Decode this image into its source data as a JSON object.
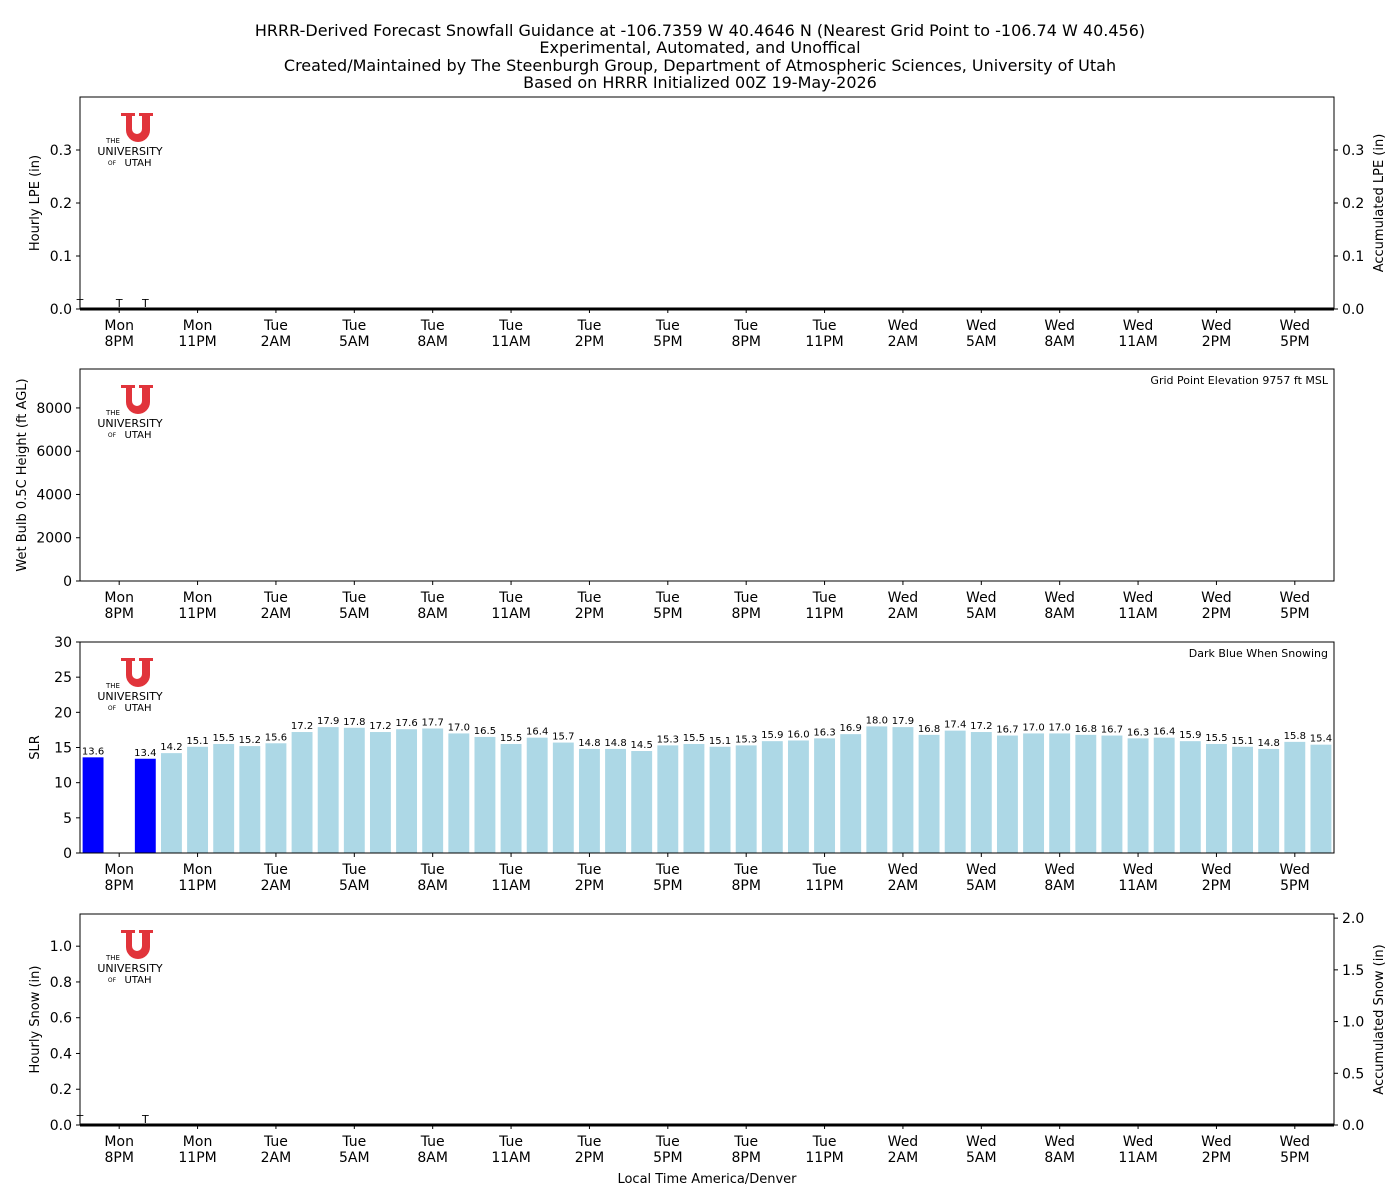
{
  "header": {
    "lines": [
      "HRRR-Derived Forecast Snowfall Guidance at -106.7359 W 40.4646 N (Nearest Grid Point to -106.74 W 40.456)",
      "Experimental, Automated, and Unoffical",
      "Created/Maintained by The Steenburgh Group, Department of Atmospheric Sciences, University of Utah",
      "Based on HRRR Initialized 00Z 19-May-2026"
    ]
  },
  "logo": {
    "the": "THE",
    "university": "UNIVERSITY",
    "of": "OF",
    "utah": "UTAH",
    "color": "#e1343b"
  },
  "colors": {
    "snowing": "#0000ff",
    "not_snowing": "#add8e6",
    "axis": "#000000"
  },
  "x_axis": {
    "label": "Local Time America/Denver",
    "ticks": [
      {
        "h": 1,
        "day": "Mon",
        "time": "8PM"
      },
      {
        "h": 4,
        "day": "Mon",
        "time": "11PM"
      },
      {
        "h": 7,
        "day": "Tue",
        "time": "2AM"
      },
      {
        "h": 10,
        "day": "Tue",
        "time": "5AM"
      },
      {
        "h": 13,
        "day": "Tue",
        "time": "8AM"
      },
      {
        "h": 16,
        "day": "Tue",
        "time": "11AM"
      },
      {
        "h": 19,
        "day": "Tue",
        "time": "2PM"
      },
      {
        "h": 22,
        "day": "Tue",
        "time": "5PM"
      },
      {
        "h": 25,
        "day": "Tue",
        "time": "8PM"
      },
      {
        "h": 28,
        "day": "Tue",
        "time": "11PM"
      },
      {
        "h": 31,
        "day": "Wed",
        "time": "2AM"
      },
      {
        "h": 34,
        "day": "Wed",
        "time": "5AM"
      },
      {
        "h": 37,
        "day": "Wed",
        "time": "8AM"
      },
      {
        "h": 40,
        "day": "Wed",
        "time": "11AM"
      },
      {
        "h": 43,
        "day": "Wed",
        "time": "2PM"
      },
      {
        "h": 46,
        "day": "Wed",
        "time": "5PM"
      }
    ],
    "range": [
      0,
      47
    ]
  },
  "chart_data": [
    {
      "type": "bar",
      "id": "lpe",
      "ylabel": "Hourly LPE (in)",
      "ylabel_right": "Accumulated LPE (in)",
      "ylim": [
        0,
        0.4
      ],
      "yticks": [
        "0.0",
        "0.1",
        "0.2",
        "0.3"
      ],
      "yticks_right": [
        "0.0",
        "0.1",
        "0.2",
        "0.3"
      ],
      "trace_marks": [
        {
          "h": 0,
          "label": "T"
        },
        {
          "h": 1,
          "label": "T"
        },
        {
          "h": 2,
          "label": "T"
        }
      ],
      "series": [
        {
          "values": [
            0,
            0,
            0,
            0,
            0,
            0,
            0,
            0,
            0,
            0,
            0,
            0,
            0,
            0,
            0,
            0,
            0,
            0,
            0,
            0,
            0,
            0,
            0,
            0,
            0,
            0,
            0,
            0,
            0,
            0,
            0,
            0,
            0,
            0,
            0,
            0,
            0,
            0,
            0,
            0,
            0,
            0,
            0,
            0,
            0,
            0,
            0,
            0
          ]
        }
      ]
    },
    {
      "type": "bar",
      "id": "wetbulb",
      "ylabel": "Wet Bulb 0.5C Height (ft AGL)",
      "ylim": [
        0,
        9800
      ],
      "yticks": [
        "0",
        "2000",
        "4000",
        "6000",
        "8000"
      ],
      "annotation": "Grid Point Elevation 9757 ft MSL",
      "series": []
    },
    {
      "type": "bar",
      "id": "slr",
      "ylabel": "SLR",
      "ylim": [
        0,
        30
      ],
      "yticks": [
        "0",
        "5",
        "10",
        "15",
        "20",
        "25",
        "30"
      ],
      "annotation": "Dark Blue When Snowing",
      "values": [
        13.6,
        null,
        13.4,
        14.2,
        15.1,
        15.5,
        15.2,
        15.6,
        17.2,
        17.9,
        17.8,
        17.2,
        17.6,
        17.7,
        17.0,
        16.5,
        15.5,
        16.4,
        15.7,
        14.8,
        14.8,
        14.5,
        15.3,
        15.5,
        15.1,
        15.3,
        15.9,
        16.0,
        16.3,
        16.9,
        18.0,
        17.9,
        16.8,
        17.4,
        17.2,
        16.7,
        17.0,
        17.0,
        16.8,
        16.7,
        16.3,
        16.4,
        15.9,
        15.5,
        15.1,
        14.8,
        15.8,
        15.4
      ],
      "labels": [
        "13.6",
        "",
        "13.4",
        "14.2",
        "15.1",
        "15.5",
        "15.2",
        "15.6",
        "17.2",
        "17.9",
        "17.8",
        "17.2",
        "17.6",
        "17.7",
        "17.0",
        "16.5",
        "15.5",
        "16.4",
        "15.7",
        "14.8",
        "14.8",
        "14.5",
        "15.3",
        "15.5",
        "15.1",
        "15.3",
        "15.9",
        "16.0",
        "16.3",
        "16.9",
        "18.0",
        "17.9",
        "16.8",
        "17.4",
        "17.2",
        "16.7",
        "17.0",
        "17.0",
        "16.8",
        "16.7",
        "16.3",
        "16.4",
        "15.9",
        "15.5",
        "15.1",
        "14.8",
        "15.8",
        "15.4"
      ],
      "snowing": [
        0,
        2
      ]
    },
    {
      "type": "bar",
      "id": "snow",
      "ylabel": "Hourly Snow (in)",
      "ylabel_right": "Accumulated Snow (in)",
      "ylim": [
        0,
        1.18
      ],
      "ylim_right": [
        0,
        2.04
      ],
      "yticks": [
        "0.0",
        "0.2",
        "0.4",
        "0.6",
        "0.8",
        "1.0"
      ],
      "yticks_right": [
        "0.0",
        "0.5",
        "1.0",
        "1.5",
        "2.0"
      ],
      "trace_marks": [
        {
          "h": 0,
          "label": "T"
        },
        {
          "h": 2,
          "label": "T"
        }
      ],
      "series": [
        {
          "values": [
            0,
            0,
            0,
            0,
            0,
            0,
            0,
            0,
            0,
            0,
            0,
            0,
            0,
            0,
            0,
            0,
            0,
            0,
            0,
            0,
            0,
            0,
            0,
            0,
            0,
            0,
            0,
            0,
            0,
            0,
            0,
            0,
            0,
            0,
            0,
            0,
            0,
            0,
            0,
            0,
            0,
            0,
            0,
            0,
            0,
            0,
            0,
            0
          ]
        }
      ]
    }
  ]
}
